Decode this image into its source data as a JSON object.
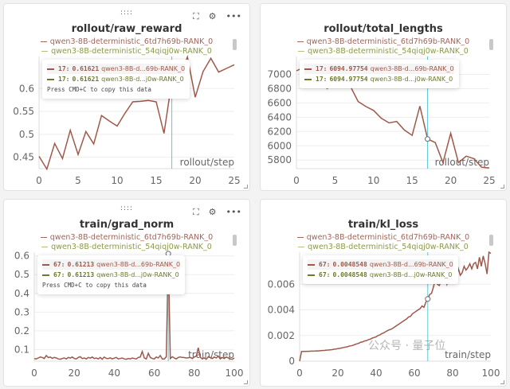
{
  "ui": {
    "drag_handle": "::::",
    "fullscreen_icon": "fullscreen-icon",
    "settings_icon": "gear-icon",
    "more_icon": "more-icon",
    "copy_hint": "Press CMD+C to copy this data"
  },
  "colors": {
    "series1": "#a0584a",
    "series2": "#6b7a2a",
    "cursor": "#5bc8d8",
    "grid": "#eeeeee"
  },
  "watermark": "公众号 · 量子位",
  "panels": [
    {
      "title": "rollout/raw_reward",
      "legend": [
        "qwen3-8B-deterministic_6td7h69b-RANK_0",
        "qwen3-8B-deterministic_54qiqj0w-RANK_0"
      ],
      "tooltip": [
        {
          "step": "17:",
          "value": "0.61621",
          "run": "qwen3-8B-d...69b-RANK_0"
        },
        {
          "step": "17:",
          "value": "0.61621",
          "run": "qwen3-8B-d...j0w-RANK_0"
        }
      ],
      "show_hint": true,
      "x_label": "rollout/step"
    },
    {
      "title": "rollout/total_lengths",
      "legend": [
        "qwen3-8B-deterministic_6td7h69b-RANK_0",
        "qwen3-8B-deterministic_54qiqj0w-RANK_0"
      ],
      "tooltip": [
        {
          "step": "17:",
          "value": "6094.97754",
          "run": "qwen3-8B-d...69b-RANK_0"
        },
        {
          "step": "17:",
          "value": "6094.97754",
          "run": "qwen3-8B-d...j0w-RANK_0"
        }
      ],
      "show_hint": false,
      "x_label": "rollout/step"
    },
    {
      "title": "train/grad_norm",
      "legend": [
        "qwen3-8B-deterministic_6td7h69b-RANK_0",
        "qwen3-8B-deterministic_54qiqj0w-RANK_0"
      ],
      "tooltip": [
        {
          "step": "67:",
          "value": "0.61213",
          "run": "qwen3-8B-d...69b-RANK_0"
        },
        {
          "step": "67:",
          "value": "0.61213",
          "run": "qwen3-8B-d...j0w-RANK_0"
        }
      ],
      "show_hint": true,
      "x_label": "train/step"
    },
    {
      "title": "train/kl_loss",
      "legend": [
        "qwen3-8B-deterministic_6td7h69b-RANK_0",
        "qwen3-8B-deterministic_54qiqj0w-RANK_0"
      ],
      "tooltip": [
        {
          "step": "67:",
          "value": "0.0048548",
          "run": "qwen3-8B-d...69b-RANK_0"
        },
        {
          "step": "67:",
          "value": "0.0048548",
          "run": "qwen3-8B-d...j0w-RANK_0"
        }
      ],
      "show_hint": false,
      "x_label": "train/step"
    }
  ],
  "chart_data": [
    {
      "type": "line",
      "title": "rollout/raw_reward",
      "xlabel": "rollout/step",
      "xlim": [
        0,
        25
      ],
      "ylim": [
        0.425,
        0.67
      ],
      "xticks": [
        0,
        5,
        10,
        15,
        20,
        25
      ],
      "yticks": [
        0.45,
        0.5,
        0.55,
        0.6
      ],
      "ytick_labels": [
        "0.45",
        "0.5",
        "0.55",
        "0.6"
      ],
      "grid": true,
      "legend": "top",
      "cursor_x": 17,
      "x": [
        0,
        1,
        2,
        3,
        4,
        5,
        6,
        7,
        8,
        9,
        10,
        11,
        12,
        13,
        14,
        15,
        16,
        17,
        18,
        19,
        20,
        21,
        22,
        23,
        24,
        25
      ],
      "series": [
        {
          "name": "qwen3-8B-deterministic_6td7h69b-RANK_0",
          "values": [
            0.452,
            0.424,
            0.48,
            0.447,
            0.509,
            0.456,
            0.506,
            0.479,
            0.541,
            0.529,
            0.518,
            0.546,
            0.571,
            0.572,
            0.574,
            0.571,
            0.502,
            0.616,
            0.624,
            0.669,
            0.581,
            0.637,
            0.666,
            0.636,
            0.644,
            0.652
          ]
        }
      ]
    },
    {
      "type": "line",
      "title": "rollout/total_lengths",
      "xlabel": "rollout/step",
      "xlim": [
        0,
        25
      ],
      "ylim": [
        5680,
        7250
      ],
      "xticks": [
        0,
        5,
        10,
        15,
        20,
        25
      ],
      "yticks": [
        5800,
        6000,
        6200,
        6400,
        6600,
        6800,
        7000
      ],
      "ytick_labels": [
        "5800",
        "6000",
        "6200",
        "6400",
        "6600",
        "6800",
        "7000"
      ],
      "grid": true,
      "legend": "top",
      "cursor_x": 17,
      "x": [
        0,
        1,
        2,
        3,
        4,
        5,
        6,
        7,
        8,
        9,
        10,
        11,
        12,
        13,
        14,
        15,
        16,
        17,
        18,
        19,
        20,
        21,
        22,
        23,
        24,
        25
      ],
      "series": [
        {
          "name": "qwen3-8B-deterministic_6td7h69b-RANK_0",
          "values": [
            7050,
            7100,
            6950,
            6900,
            6800,
            6950,
            7000,
            6830,
            6620,
            6550,
            6495,
            6385,
            6320,
            6340,
            6220,
            6145,
            6555,
            6095,
            6045,
            5765,
            6175,
            5765,
            5855,
            5820,
            5700,
            5690
          ]
        }
      ]
    },
    {
      "type": "line",
      "title": "train/grad_norm",
      "xlabel": "train/step",
      "xlim": [
        0,
        100
      ],
      "ylim": [
        0.038,
        0.62
      ],
      "xticks": [
        0,
        20,
        40,
        60,
        80,
        100
      ],
      "yticks": [
        0.1,
        0.2,
        0.3,
        0.4,
        0.5,
        0.6
      ],
      "ytick_labels": [
        "0.1",
        "0.2",
        "0.3",
        "0.4",
        "0.5",
        "0.6"
      ],
      "grid": true,
      "legend": "top",
      "cursor_x": 67,
      "x_start": 0,
      "x_step": 1,
      "series": [
        {
          "name": "qwen3-8B-deterministic_6td7h69b-RANK_0",
          "values": [
            0.052,
            0.05,
            0.055,
            0.06,
            0.058,
            0.052,
            0.068,
            0.057,
            0.06,
            0.053,
            0.058,
            0.055,
            0.05,
            0.048,
            0.052,
            0.055,
            0.05,
            0.058,
            0.054,
            0.06,
            0.052,
            0.05,
            0.058,
            0.062,
            0.052,
            0.055,
            0.05,
            0.058,
            0.054,
            0.06,
            0.052,
            0.055,
            0.05,
            0.058,
            0.048,
            0.06,
            0.053,
            0.052,
            0.056,
            0.05,
            0.054,
            0.058,
            0.05,
            0.052,
            0.055,
            0.05,
            0.048,
            0.052,
            0.05,
            0.055,
            0.052,
            0.05,
            0.058,
            0.06,
            0.09,
            0.055,
            0.05,
            0.08,
            0.058,
            0.052,
            0.05,
            0.06,
            0.055,
            0.068,
            0.05,
            0.05,
            0.062,
            0.612,
            0.052,
            0.062,
            0.055,
            0.05,
            0.058,
            0.06,
            0.058,
            0.057,
            0.055,
            0.056,
            0.058,
            0.052,
            0.06,
            0.065,
            0.11,
            0.06,
            0.05,
            0.055,
            0.048,
            0.062,
            0.058,
            0.052,
            0.06,
            0.055,
            0.065,
            0.05,
            0.058,
            0.052,
            0.06,
            0.055,
            0.05,
            0.048,
            0.055
          ]
        }
      ]
    },
    {
      "type": "line",
      "title": "train/kl_loss",
      "xlabel": "train/step",
      "xlim": [
        0,
        100
      ],
      "ylim": [
        0,
        0.0085
      ],
      "xticks": [
        0,
        20,
        40,
        60,
        80,
        100
      ],
      "yticks": [
        0,
        0.002,
        0.004,
        0.006
      ],
      "ytick_labels": [
        "0",
        "0.002",
        "0.004",
        "0.006"
      ],
      "grid": true,
      "legend": "top",
      "cursor_x": 67,
      "x_start": 0,
      "x_step": 1,
      "series": [
        {
          "name": "qwen3-8B-deterministic_6td7h69b-RANK_0",
          "values": [
            0,
            0.00075,
            0.00076,
            0.00076,
            0.00077,
            0.00077,
            0.00078,
            0.00078,
            0.00079,
            0.0008,
            0.0008,
            0.00082,
            0.00083,
            0.00084,
            0.00086,
            0.00087,
            0.00089,
            0.0009,
            0.00093,
            0.00095,
            0.00098,
            0.001,
            0.00103,
            0.00107,
            0.0011,
            0.00112,
            0.00118,
            0.0012,
            0.00125,
            0.0013,
            0.00135,
            0.0014,
            0.00148,
            0.0015,
            0.00158,
            0.0016,
            0.00168,
            0.00172,
            0.0018,
            0.00185,
            0.0019,
            0.002,
            0.00205,
            0.00215,
            0.0022,
            0.0023,
            0.00238,
            0.00245,
            0.0025,
            0.0026,
            0.0027,
            0.0028,
            0.0029,
            0.003,
            0.0031,
            0.0032,
            0.0033,
            0.00345,
            0.0035,
            0.0037,
            0.0038,
            0.0039,
            0.004,
            0.0041,
            0.0043,
            0.0042,
            0.0046,
            0.00485,
            0.0052,
            0.0053,
            0.0058,
            0.0064,
            0.006,
            0.0059,
            0.0062,
            0.0063,
            0.0065,
            0.006,
            0.0066,
            0.0065,
            0.0062,
            0.0068,
            0.0066,
            0.0072,
            0.0067,
            0.0069,
            0.0074,
            0.0071,
            0.0073,
            0.0076,
            0.0072,
            0.0076,
            0.0077,
            0.0072,
            0.0081,
            0.0074,
            0.0082,
            0.0076,
            0.0068,
            0.0085,
            0.0084
          ]
        }
      ]
    }
  ]
}
